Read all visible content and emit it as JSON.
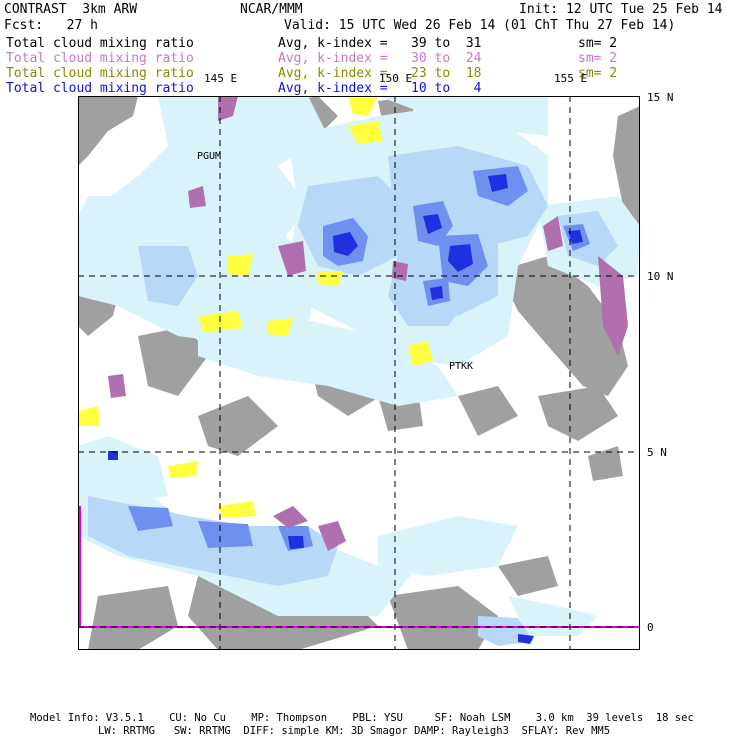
{
  "header": {
    "left_title": "CONTRAST  3km ARW",
    "center_title": "NCAR/MMM",
    "init": "Init: 12 UTC Tue 25 Feb 14",
    "forecast": "Fcst:   27 h",
    "valid": "Valid: 15 UTC Wed 26 Feb 14 (01 ChT Thu 27 Feb 14)"
  },
  "fields": [
    {
      "name": "Total cloud mixing ratio",
      "range": "Avg, k-index =   39 to  31",
      "smooth": "sm= 2",
      "color": "#000000"
    },
    {
      "name": "Total cloud mixing ratio",
      "range": "Avg, k-index =   30 to  24",
      "smooth": "sm= 2",
      "color": "#c678c6"
    },
    {
      "name": "Total cloud mixing ratio",
      "range": "Avg, k-index =   23 to  18",
      "smooth": "sm= 2",
      "color": "#8a8a00"
    },
    {
      "name": "Total cloud mixing ratio",
      "range": "Avg, k-index =   10 to   4",
      "smooth": "",
      "color": "#1010e0"
    }
  ],
  "map": {
    "lon_labels": [
      "145 E",
      "150 E",
      "155 E"
    ],
    "lat_labels": [
      "15 N",
      "10 N",
      "5 N",
      "0"
    ],
    "stations": [
      "PGUM",
      "PTKK"
    ],
    "colors": {
      "grey": "#a0a0a0",
      "purple": "#b070b0",
      "yellow": "#ffff40",
      "cloud_light": "#d8f4fa",
      "cloud_mid": "#b8d8f8",
      "cloud_dark": "#7090f0",
      "cloud_core": "#2030e0",
      "equator_line": "#e000e0"
    }
  },
  "footer": {
    "line1": "Model Info: V3.5.1    CU: No Cu    MP: Thompson    PBL: YSU     SF: Noah LSM    3.0 km  39 levels  18 sec",
    "line2": "LW: RRTMG   SW: RRTMG  DIFF: simple KM: 3D Smagor DAMP: Rayleigh3  SFLAY: Rev MM5"
  }
}
